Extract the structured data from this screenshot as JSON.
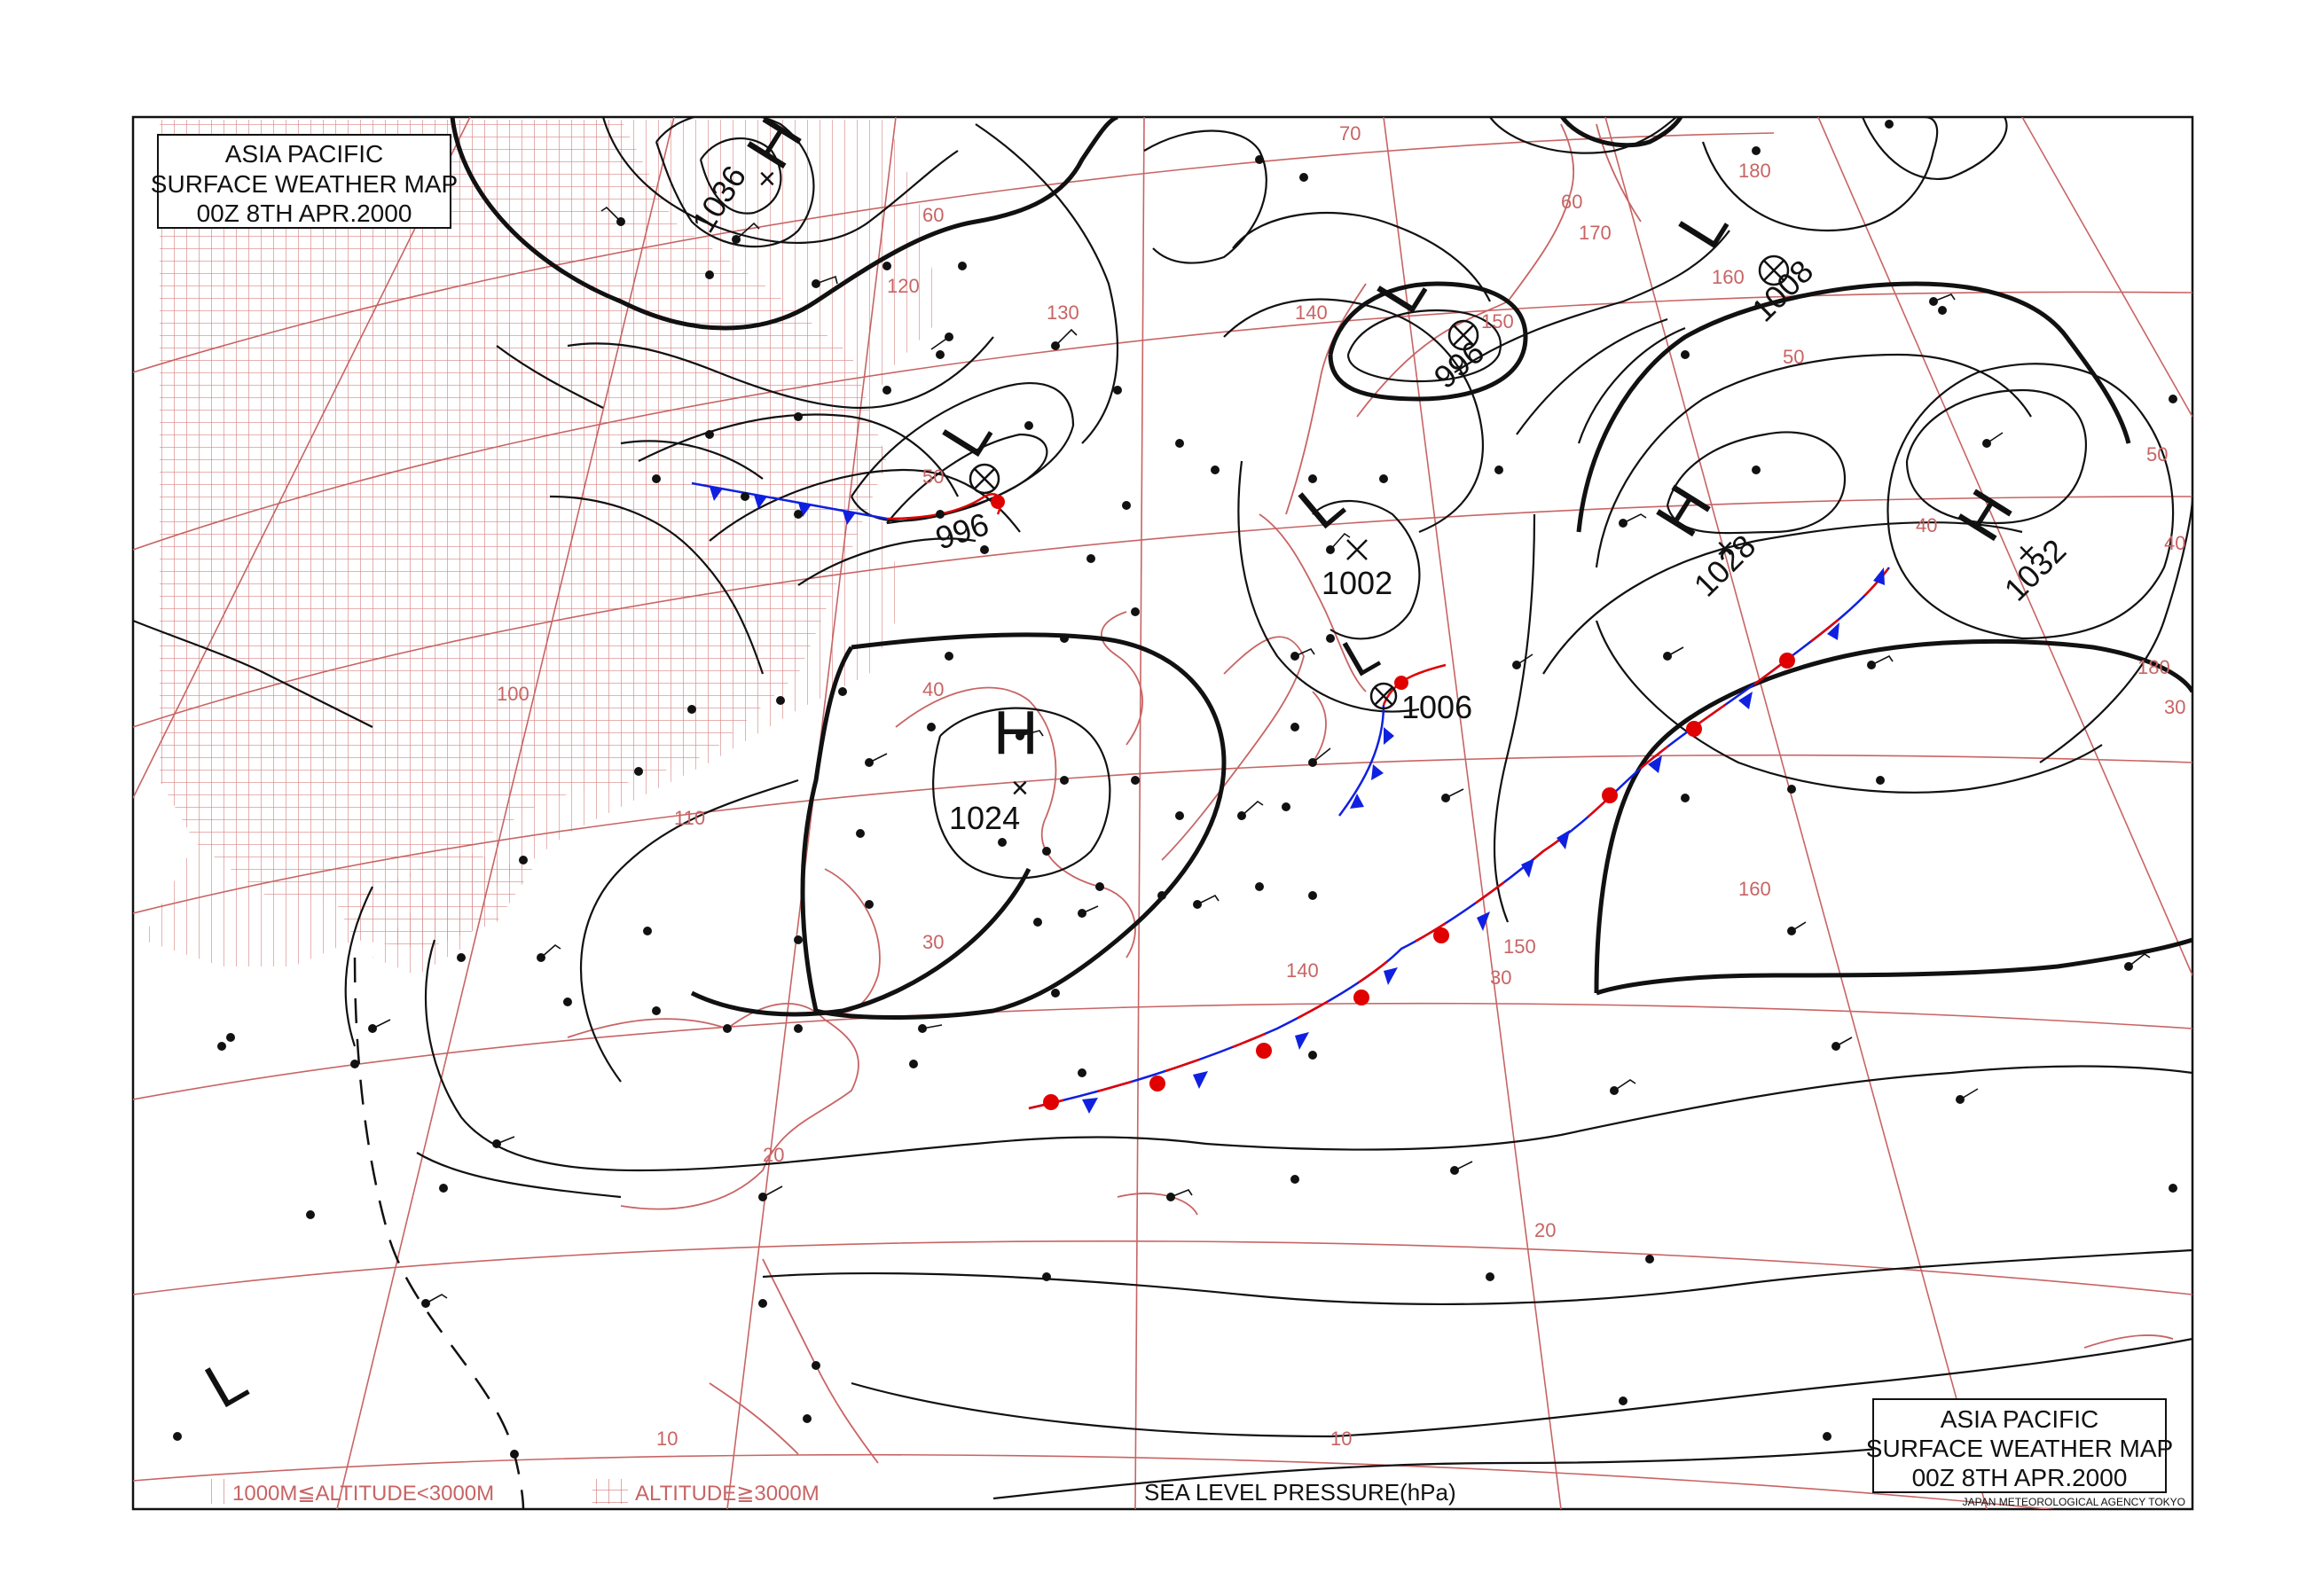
{
  "title_box_top_left": {
    "line1": "ASIA PACIFIC",
    "line2": "SURFACE WEATHER MAP",
    "line3": "00Z   8TH APR.2000"
  },
  "title_box_bottom_right": {
    "line1": "ASIA PACIFIC",
    "line2": "SURFACE WEATHER MAP",
    "line3": "00Z   8TH APR.2000"
  },
  "agency": "JAPAN METEOROLOGICAL AGENCY TOKYO",
  "legend": {
    "altitude_mid": "1000M≦ALTITUDE<3000M",
    "altitude_high": "ALTITUDE≧3000M",
    "pressure_caption": "SEA LEVEL PRESSURE(hPa)"
  },
  "pressure_centers": [
    {
      "type": "H",
      "value": "1036"
    },
    {
      "type": "L",
      "value": "996"
    },
    {
      "type": "L",
      "value": "996"
    },
    {
      "type": "L",
      "value": "1008"
    },
    {
      "type": "L",
      "value": "1002"
    },
    {
      "type": "L",
      "value": "1006"
    },
    {
      "type": "H",
      "value": "1024"
    },
    {
      "type": "H",
      "value": "1028"
    },
    {
      "type": "H",
      "value": "1032"
    },
    {
      "type": "L",
      "value": ""
    }
  ],
  "grid_labels": {
    "longitudes": [
      "120",
      "130",
      "140",
      "150",
      "160",
      "170",
      "180",
      "180",
      "150",
      "160",
      "140",
      "110",
      "100"
    ],
    "latitudes": [
      "60",
      "50",
      "40",
      "30",
      "20",
      "10",
      "70",
      "60",
      "50",
      "40",
      "30",
      "20",
      "10",
      "50",
      "40",
      "30"
    ]
  },
  "colors": {
    "isobar": "#111111",
    "grid": "#c86464",
    "warm_front": "#e00000",
    "cold_front": "#1020e0",
    "hatch": "#d27878"
  }
}
